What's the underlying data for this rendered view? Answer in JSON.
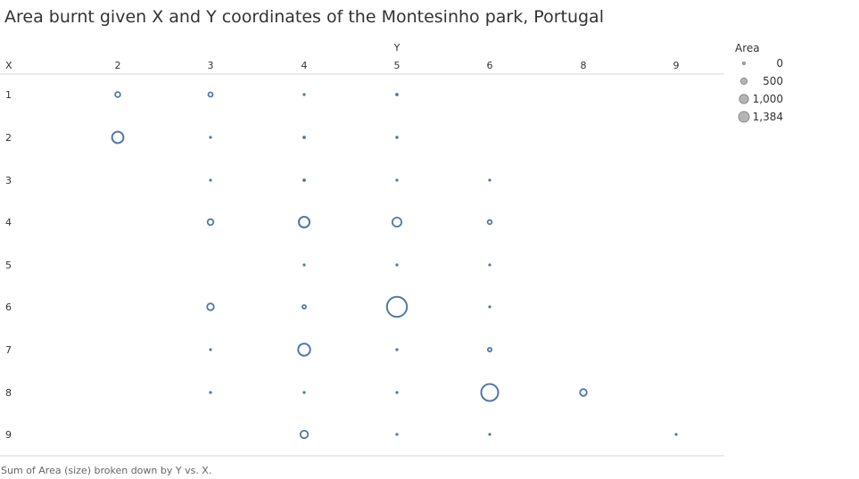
{
  "title": "Area burnt given X and Y coordinates of the Montesinho park, Portugal",
  "caption": "Sum of Area (size) broken down by Y vs. X.",
  "chart_data": {
    "type": "scatter",
    "title": "Area burnt given X and Y coordinates of the Montesinho park, Portugal",
    "column_axis_label": "Y",
    "row_axis_label": "X",
    "columns": [
      "2",
      "3",
      "4",
      "5",
      "6",
      "8",
      "9"
    ],
    "rows": [
      "1",
      "2",
      "3",
      "4",
      "5",
      "6",
      "7",
      "8",
      "9"
    ],
    "size_measure": "Area",
    "mark_color": "#4e79a7",
    "points": [
      {
        "x": 1,
        "y": 2,
        "area": 90
      },
      {
        "x": 1,
        "y": 3,
        "area": 70
      },
      {
        "x": 1,
        "y": 4,
        "area": 30
      },
      {
        "x": 1,
        "y": 5,
        "area": 40
      },
      {
        "x": 2,
        "y": 2,
        "area": 450
      },
      {
        "x": 2,
        "y": 3,
        "area": 4
      },
      {
        "x": 2,
        "y": 4,
        "area": 40
      },
      {
        "x": 2,
        "y": 5,
        "area": 35
      },
      {
        "x": 3,
        "y": 3,
        "area": 4
      },
      {
        "x": 3,
        "y": 4,
        "area": 40
      },
      {
        "x": 3,
        "y": 5,
        "area": 4
      },
      {
        "x": 3,
        "y": 6,
        "area": 4
      },
      {
        "x": 4,
        "y": 3,
        "area": 120
      },
      {
        "x": 4,
        "y": 4,
        "area": 400
      },
      {
        "x": 4,
        "y": 5,
        "area": 290
      },
      {
        "x": 4,
        "y": 6,
        "area": 60
      },
      {
        "x": 5,
        "y": 4,
        "area": 25
      },
      {
        "x": 5,
        "y": 5,
        "area": 4
      },
      {
        "x": 5,
        "y": 6,
        "area": 4
      },
      {
        "x": 6,
        "y": 3,
        "area": 160
      },
      {
        "x": 6,
        "y": 4,
        "area": 45
      },
      {
        "x": 6,
        "y": 5,
        "area": 1384
      },
      {
        "x": 6,
        "y": 6,
        "area": 4
      },
      {
        "x": 7,
        "y": 3,
        "area": 8
      },
      {
        "x": 7,
        "y": 4,
        "area": 500
      },
      {
        "x": 7,
        "y": 5,
        "area": 30
      },
      {
        "x": 7,
        "y": 6,
        "area": 50
      },
      {
        "x": 8,
        "y": 3,
        "area": 6
      },
      {
        "x": 8,
        "y": 4,
        "area": 4
      },
      {
        "x": 8,
        "y": 5,
        "area": 4
      },
      {
        "x": 8,
        "y": 6,
        "area": 1000
      },
      {
        "x": 8,
        "y": 8,
        "area": 160
      },
      {
        "x": 9,
        "y": 4,
        "area": 200
      },
      {
        "x": 9,
        "y": 5,
        "area": 4
      },
      {
        "x": 9,
        "y": 6,
        "area": 25
      },
      {
        "x": 9,
        "y": 9,
        "area": 4
      }
    ],
    "legend": {
      "title": "Area",
      "position": "top-right",
      "entries": [
        {
          "label": "0",
          "value": 0
        },
        {
          "label": "500",
          "value": 500
        },
        {
          "label": "1,000",
          "value": 1000
        },
        {
          "label": "1,384",
          "value": 1384
        }
      ]
    },
    "grid": false
  }
}
